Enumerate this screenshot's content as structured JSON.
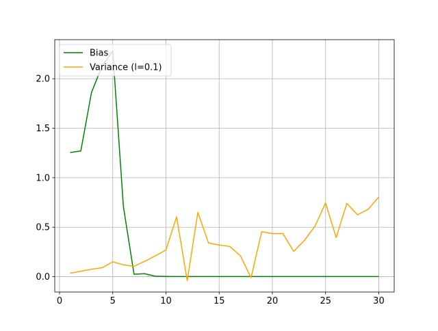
{
  "chart_data": {
    "type": "line",
    "title": "",
    "xlabel": "",
    "ylabel": "",
    "xlim": [
      -0.45,
      31.45
    ],
    "ylim": [
      -0.155,
      2.395
    ],
    "xticks": [
      0,
      5,
      10,
      15,
      20,
      25,
      30
    ],
    "yticks": [
      0.0,
      0.5,
      1.0,
      1.5,
      2.0
    ],
    "xtick_labels": [
      "0",
      "5",
      "10",
      "15",
      "20",
      "25",
      "30"
    ],
    "ytick_labels": [
      "0.0",
      "0.5",
      "1.0",
      "1.5",
      "2.0"
    ],
    "grid": true,
    "legend_position": "top-left",
    "x": [
      1,
      2,
      3,
      4,
      5,
      6,
      7,
      8,
      9,
      10,
      11,
      12,
      13,
      14,
      15,
      16,
      17,
      18,
      19,
      20,
      21,
      22,
      23,
      24,
      25,
      26,
      27,
      28,
      29,
      30
    ],
    "series": [
      {
        "name": "Bias",
        "color": "#008000",
        "values": [
          1.255,
          1.27,
          1.86,
          2.13,
          2.28,
          0.71,
          0.025,
          0.03,
          0.005,
          0.002,
          0.001,
          0.001,
          0.001,
          0.001,
          0.001,
          0.001,
          0.001,
          0.001,
          0.001,
          0.001,
          0.001,
          0.001,
          0.001,
          0.001,
          0.001,
          0.001,
          0.001,
          0.001,
          0.001,
          0.001
        ]
      },
      {
        "name": "Variance (l=0.1)",
        "color": "#FFA500",
        "values": [
          0.035,
          0.055,
          0.075,
          0.09,
          0.15,
          0.12,
          0.105,
          0.155,
          0.21,
          0.27,
          0.605,
          -0.04,
          0.65,
          0.34,
          0.32,
          0.305,
          0.21,
          -0.01,
          0.455,
          0.435,
          0.435,
          0.255,
          0.365,
          0.51,
          0.745,
          0.395,
          0.74,
          0.625,
          0.68,
          0.805
        ]
      }
    ]
  }
}
